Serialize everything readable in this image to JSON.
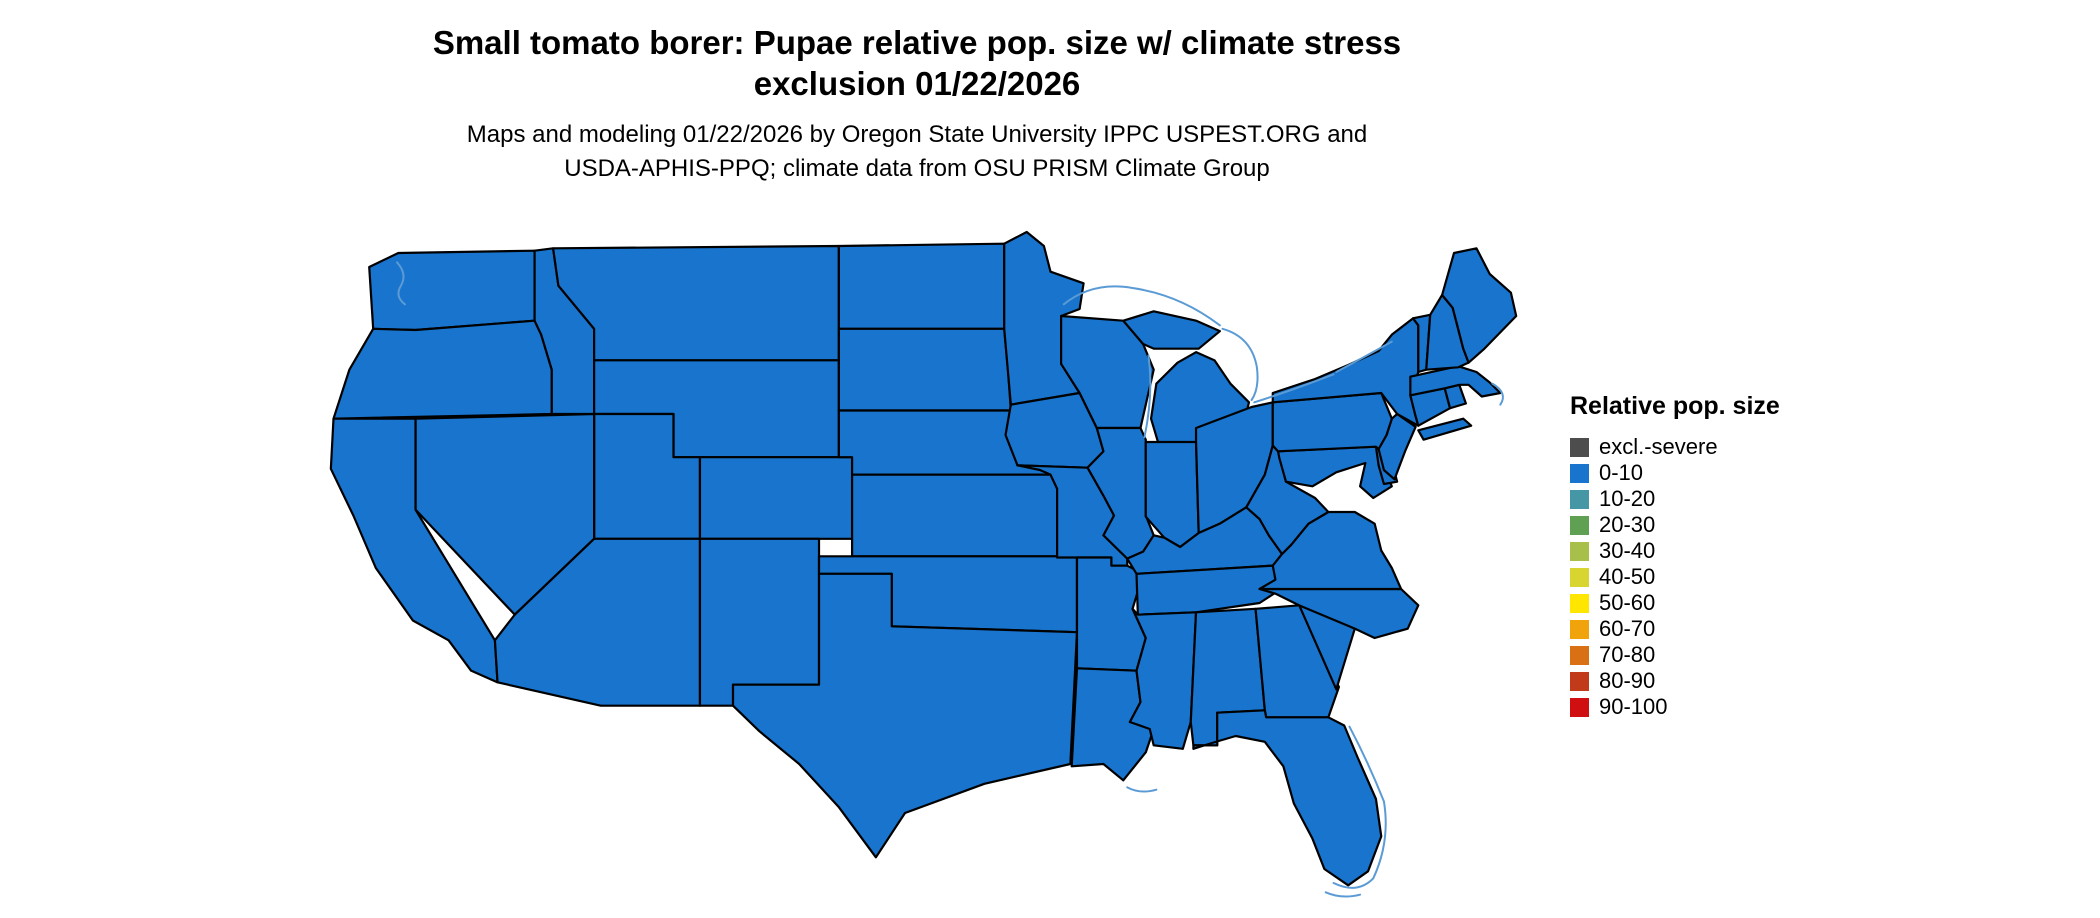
{
  "title": {
    "line1": "Small tomato borer: Pupae relative pop. size w/ climate stress",
    "line2": "exclusion 01/22/2026"
  },
  "subtitle": {
    "line1": "Maps and modeling 01/22/2026 by Oregon State University IPPC USPEST.ORG and",
    "line2": "USDA-APHIS-PPQ; climate data from OSU PRISM Climate Group"
  },
  "legend": {
    "title": "Relative pop. size",
    "entries": [
      {
        "label": "excl.-severe",
        "color": "#4d4d4d"
      },
      {
        "label": "0-10",
        "color": "#1874cd"
      },
      {
        "label": "10-20",
        "color": "#4697a6"
      },
      {
        "label": "20-30",
        "color": "#5fa052"
      },
      {
        "label": "30-40",
        "color": "#a8c04a"
      },
      {
        "label": "40-50",
        "color": "#d8d531"
      },
      {
        "label": "50-60",
        "color": "#ffe600"
      },
      {
        "label": "60-70",
        "color": "#f0a30a"
      },
      {
        "label": "70-80",
        "color": "#d97014"
      },
      {
        "label": "80-90",
        "color": "#c13a1a"
      },
      {
        "label": "90-100",
        "color": "#d01010"
      }
    ]
  },
  "map": {
    "state_fill_color": "#1874cd",
    "state_border_color": "#000000",
    "water_line_color": "#5b9bd5",
    "uniform_value_category": "0-10"
  }
}
